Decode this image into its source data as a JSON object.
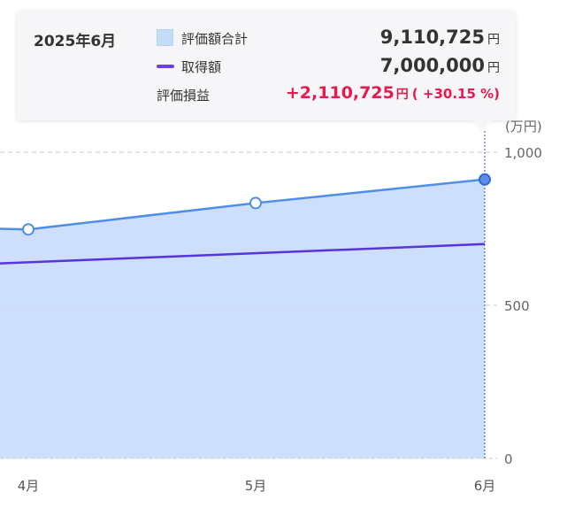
{
  "tooltip": {
    "date": "2025年6月",
    "rows": [
      {
        "label": "評価額合計",
        "value": "9,110,725",
        "unit": "円"
      },
      {
        "label": "取得額",
        "value": "7,000,000",
        "unit": "円"
      },
      {
        "label": "評価損益",
        "value": "+2,110,725",
        "unit": "円",
        "percent": "( +30.15 %)"
      }
    ]
  },
  "y_unit_label": "(万円)",
  "colors": {
    "area_fill": "#c9dcfb",
    "valuation_line": "#4e8ee8",
    "cost_line": "#5634e0",
    "gain": "#e8194c"
  },
  "chart_data": {
    "type": "area",
    "categories": [
      "4月",
      "5月",
      "6月"
    ],
    "y_ticks": [
      "0",
      "500",
      "1,000"
    ],
    "ylim": [
      0,
      1000
    ],
    "x_start_value": 750,
    "series": [
      {
        "name": "評価額合計",
        "values": [
          748,
          834,
          911
        ]
      },
      {
        "name": "取得額",
        "values": [
          662,
          681,
          700
        ]
      }
    ],
    "cost_start_value": 637,
    "grid": true,
    "highlighted_category": "6月"
  }
}
